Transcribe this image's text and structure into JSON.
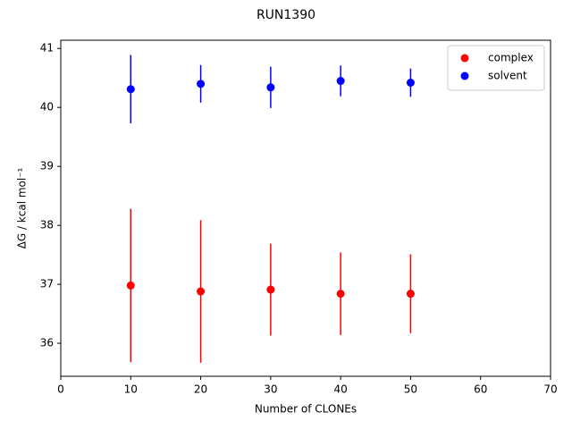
{
  "chart_data": {
    "type": "scatter",
    "title": "RUN1390",
    "x_label": "Number of CLONEs",
    "y_label": "ΔG / kcal mol⁻¹",
    "x": [
      10,
      20,
      30,
      40,
      50
    ],
    "series": [
      {
        "name": "complex",
        "color": "#ff0000",
        "values": [
          36.98,
          36.88,
          36.91,
          36.84,
          36.84
        ],
        "errors": [
          1.3,
          1.21,
          0.78,
          0.7,
          0.67
        ]
      },
      {
        "name": "solvent",
        "color": "#0000ff",
        "values": [
          40.31,
          40.4,
          40.34,
          40.45,
          40.42
        ],
        "errors": [
          0.58,
          0.32,
          0.35,
          0.26,
          0.24
        ]
      }
    ],
    "xlim": [
      0,
      70
    ],
    "xticks": [
      0,
      10,
      20,
      30,
      40,
      50,
      60,
      70
    ],
    "ylim": [
      35.44,
      41.14
    ],
    "yticks": [
      36,
      37,
      38,
      39,
      40,
      41
    ],
    "legend": "upper right"
  }
}
